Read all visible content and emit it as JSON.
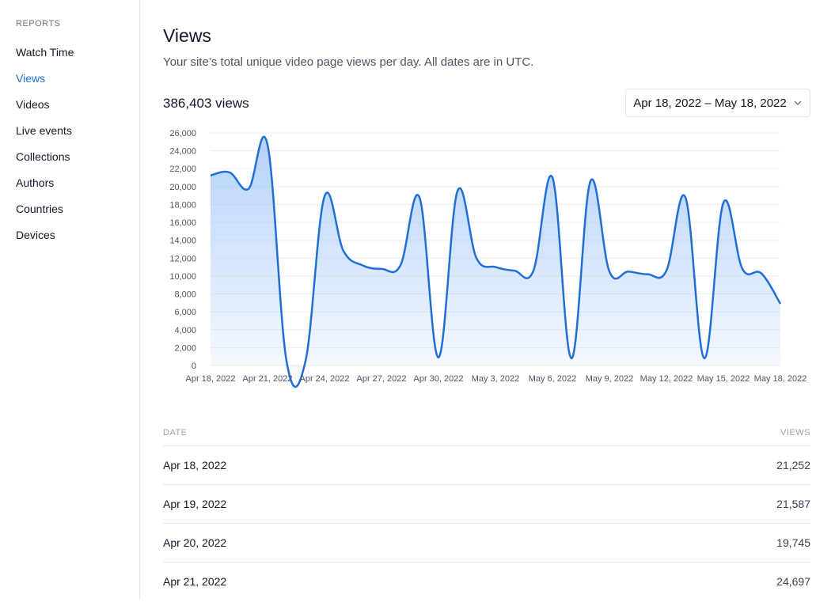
{
  "sidebar": {
    "section": "REPORTS",
    "items": [
      {
        "label": "Watch Time",
        "active": false
      },
      {
        "label": "Views",
        "active": true
      },
      {
        "label": "Videos",
        "active": false
      },
      {
        "label": "Live events",
        "active": false
      },
      {
        "label": "Collections",
        "active": false
      },
      {
        "label": "Authors",
        "active": false
      },
      {
        "label": "Countries",
        "active": false
      },
      {
        "label": "Devices",
        "active": false
      }
    ]
  },
  "header": {
    "title": "Views",
    "subtitle": "Your site’s total unique video page views per day. All dates are in UTC.",
    "total": "386,403 views",
    "date_range": "Apr 18, 2022 – May 18, 2022",
    "chevron_icon": "chevron-down-icon"
  },
  "colors": {
    "accent": "#1d6fd6",
    "line": "#1f6fd6",
    "fill_top": "#9cc3f7"
  },
  "chart_data": {
    "type": "area",
    "x": [
      "Apr 18, 2022",
      "Apr 19, 2022",
      "Apr 20, 2022",
      "Apr 21, 2022",
      "Apr 22, 2022",
      "Apr 23, 2022",
      "Apr 24, 2022",
      "Apr 25, 2022",
      "Apr 26, 2022",
      "Apr 27, 2022",
      "Apr 28, 2022",
      "Apr 29, 2022",
      "Apr 30, 2022",
      "May 1, 2022",
      "May 2, 2022",
      "May 3, 2022",
      "May 4, 2022",
      "May 5, 2022",
      "May 6, 2022",
      "May 7, 2022",
      "May 8, 2022",
      "May 9, 2022",
      "May 10, 2022",
      "May 11, 2022",
      "May 12, 2022",
      "May 13, 2022",
      "May 14, 2022",
      "May 15, 2022",
      "May 16, 2022",
      "May 17, 2022",
      "May 18, 2022"
    ],
    "values": [
      21252,
      21587,
      19745,
      24697,
      500,
      500,
      18900,
      12800,
      11200,
      10800,
      11200,
      18800,
      900,
      19500,
      12000,
      11000,
      10600,
      10600,
      21000,
      800,
      20600,
      10500,
      10500,
      10200,
      10600,
      18800,
      800,
      18200,
      10800,
      10300,
      6900
    ],
    "x_ticks": [
      "Apr 18, 2022",
      "Apr 21, 2022",
      "Apr 24, 2022",
      "Apr 27, 2022",
      "Apr 30, 2022",
      "May  3, 2022",
      "May  6, 2022",
      "May  9, 2022",
      "May 12, 2022",
      "May 15, 2022",
      "May 18, 2022"
    ],
    "y_ticks": [
      "0",
      "2,000",
      "4,000",
      "6,000",
      "8,000",
      "10,000",
      "12,000",
      "14,000",
      "16,000",
      "18,000",
      "20,000",
      "22,000",
      "24,000",
      "26,000"
    ],
    "ylim": [
      0,
      26000
    ],
    "grid": true
  },
  "table": {
    "columns": [
      "DATE",
      "VIEWS"
    ],
    "rows": [
      {
        "date": "Apr 18, 2022",
        "views": "21,252"
      },
      {
        "date": "Apr 19, 2022",
        "views": "21,587"
      },
      {
        "date": "Apr 20, 2022",
        "views": "19,745"
      },
      {
        "date": "Apr 21, 2022",
        "views": "24,697"
      }
    ]
  }
}
